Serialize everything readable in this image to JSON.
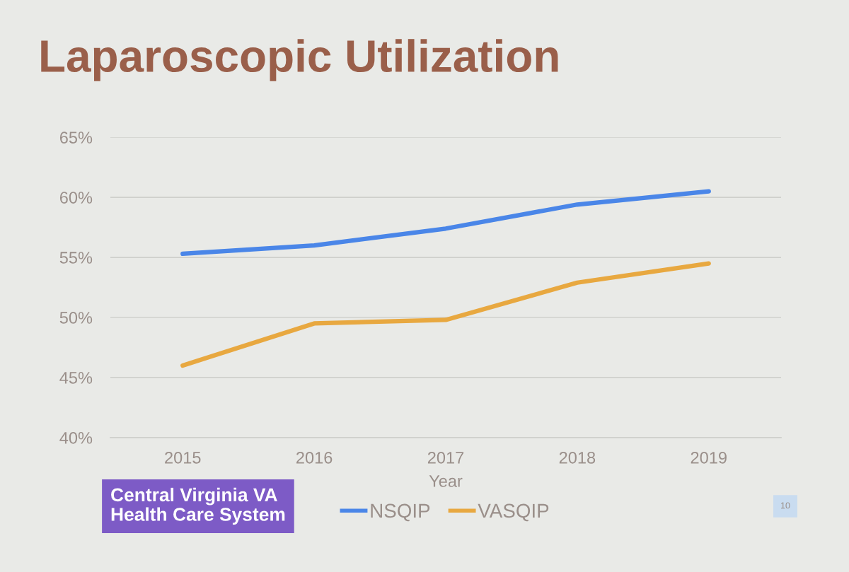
{
  "chart_data": {
    "type": "line",
    "title": "Laparoscopic Utilization",
    "xlabel": "Year",
    "categories": [
      "2015",
      "2016",
      "2017",
      "2018",
      "2019"
    ],
    "series": [
      {
        "name": "NSQIP",
        "color": "#4a86e8",
        "values": [
          55.3,
          56.0,
          57.4,
          59.4,
          60.5
        ]
      },
      {
        "name": "VASQIP",
        "color": "#e8a840",
        "values": [
          46.0,
          49.5,
          49.8,
          52.9,
          54.5
        ]
      }
    ],
    "ylim": [
      40,
      65
    ],
    "yticks": [
      {
        "value": 40,
        "label": "40%"
      },
      {
        "value": 45,
        "label": "45%"
      },
      {
        "value": 50,
        "label": "50%"
      },
      {
        "value": 55,
        "label": "55%"
      },
      {
        "value": 60,
        "label": "60%"
      },
      {
        "value": 65,
        "label": "65%"
      }
    ],
    "grid": "y",
    "legend": "bottom",
    "marker": "none",
    "line_style": "solid",
    "annotations": [
      "Central Virginia VA\nHealth Care System",
      "10"
    ]
  }
}
